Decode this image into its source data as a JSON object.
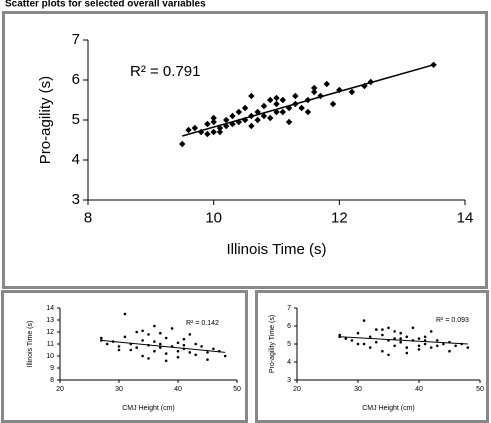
{
  "figure_title": "Scatter plots for selected overall variables",
  "chart_data": [
    {
      "type": "scatter",
      "xlabel": "Illinois Time (s)",
      "ylabel": "Pro-agility (s)",
      "annotation": "R² = 0.791",
      "marker": "diamond",
      "color": "#000000",
      "xlim": [
        8,
        14
      ],
      "xticks": [
        8,
        10,
        12,
        14
      ],
      "ylim": [
        3,
        7
      ],
      "yticks": [
        3,
        4,
        5,
        6,
        7
      ],
      "x": [
        9.5,
        9.6,
        9.8,
        9.9,
        9.9,
        10.0,
        10.0,
        10.1,
        10.1,
        10.2,
        10.2,
        10.3,
        10.3,
        10.4,
        10.4,
        10.5,
        10.5,
        10.6,
        10.6,
        10.7,
        10.7,
        10.8,
        10.8,
        10.9,
        10.9,
        11.0,
        11.0,
        11.1,
        11.1,
        11.2,
        11.2,
        11.3,
        11.3,
        11.4,
        11.5,
        11.5,
        11.6,
        11.6,
        11.7,
        11.8,
        11.9,
        12.0,
        12.2,
        12.4,
        12.5,
        13.5,
        9.7,
        10.0,
        10.6,
        11.0
      ],
      "values": [
        4.4,
        4.75,
        4.7,
        4.9,
        4.65,
        4.7,
        4.95,
        4.8,
        4.7,
        5.0,
        4.85,
        5.1,
        4.9,
        5.2,
        4.95,
        5.0,
        5.3,
        5.1,
        4.85,
        5.2,
        5.0,
        5.35,
        5.1,
        5.5,
        5.05,
        5.2,
        5.4,
        5.5,
        5.2,
        5.3,
        4.95,
        5.6,
        5.4,
        5.3,
        5.5,
        5.2,
        5.7,
        5.8,
        5.6,
        5.9,
        5.4,
        5.75,
        5.7,
        5.85,
        5.95,
        6.38,
        4.8,
        5.05,
        5.6,
        5.55
      ],
      "trendline": {
        "x": [
          9.5,
          13.5
        ],
        "values": [
          4.6,
          6.38
        ]
      }
    },
    {
      "type": "scatter",
      "xlabel": "CMJ Height (cm)",
      "ylabel": "Illinois Time (s)",
      "annotation": "R² = 0.142",
      "marker": "circle",
      "color": "#000000",
      "xlim": [
        20,
        50
      ],
      "xticks": [
        20,
        30,
        40,
        50
      ],
      "ylim": [
        8,
        14
      ],
      "yticks": [
        8,
        9,
        10,
        11,
        12,
        13,
        14
      ],
      "x": [
        27,
        27,
        28,
        29,
        30,
        31,
        31,
        32,
        32,
        33,
        33,
        34,
        34,
        35,
        35,
        35,
        36,
        36,
        36,
        37,
        37,
        38,
        38,
        38,
        39,
        39,
        40,
        40,
        40,
        41,
        41,
        42,
        42,
        43,
        43,
        44,
        45,
        45,
        46,
        47,
        48,
        30,
        34,
        37,
        41
      ],
      "values": [
        11.5,
        11.3,
        11.0,
        11.2,
        10.8,
        13.5,
        11.6,
        11.0,
        10.5,
        12.0,
        10.7,
        11.3,
        10.0,
        11.8,
        10.9,
        9.8,
        12.5,
        11.2,
        10.4,
        11.9,
        10.7,
        11.5,
        10.2,
        9.6,
        12.3,
        10.8,
        11.1,
        10.4,
        9.9,
        11.4,
        10.6,
        11.8,
        10.3,
        11.0,
        10.1,
        10.8,
        10.3,
        9.7,
        10.6,
        10.4,
        10.0,
        10.5,
        12.1,
        11.0,
        10.9
      ],
      "trendline": {
        "x": [
          27,
          48
        ],
        "values": [
          11.3,
          10.3
        ]
      }
    },
    {
      "type": "scatter",
      "xlabel": "CMJ Height (cm)",
      "ylabel": "Pro-agility Time (s)",
      "annotation": "R² = 0.093",
      "marker": "circle",
      "color": "#000000",
      "xlim": [
        20,
        50
      ],
      "xticks": [
        20,
        30,
        40,
        50
      ],
      "ylim": [
        3,
        7
      ],
      "yticks": [
        3,
        4,
        5,
        6,
        7
      ],
      "x": [
        27,
        27,
        28,
        29,
        30,
        31,
        31,
        32,
        32,
        33,
        33,
        34,
        34,
        35,
        35,
        35,
        36,
        36,
        36,
        37,
        37,
        38,
        38,
        38,
        39,
        39,
        40,
        40,
        40,
        41,
        41,
        42,
        42,
        43,
        43,
        44,
        45,
        45,
        46,
        47,
        48,
        30,
        34,
        37,
        41
      ],
      "values": [
        5.5,
        5.4,
        5.3,
        5.2,
        5.6,
        6.3,
        5.0,
        5.4,
        4.8,
        5.8,
        5.1,
        5.5,
        4.6,
        5.9,
        5.2,
        4.4,
        5.7,
        5.3,
        4.9,
        5.6,
        5.1,
        5.4,
        4.8,
        4.5,
        5.9,
        5.2,
        5.3,
        4.9,
        4.7,
        5.4,
        5.0,
        5.7,
        4.8,
        5.2,
        4.9,
        5.0,
        5.1,
        4.6,
        4.9,
        5.0,
        4.8,
        5.0,
        5.8,
        5.3,
        5.2
      ],
      "trendline": {
        "x": [
          27,
          48
        ],
        "values": [
          5.4,
          5.0
        ]
      }
    }
  ]
}
